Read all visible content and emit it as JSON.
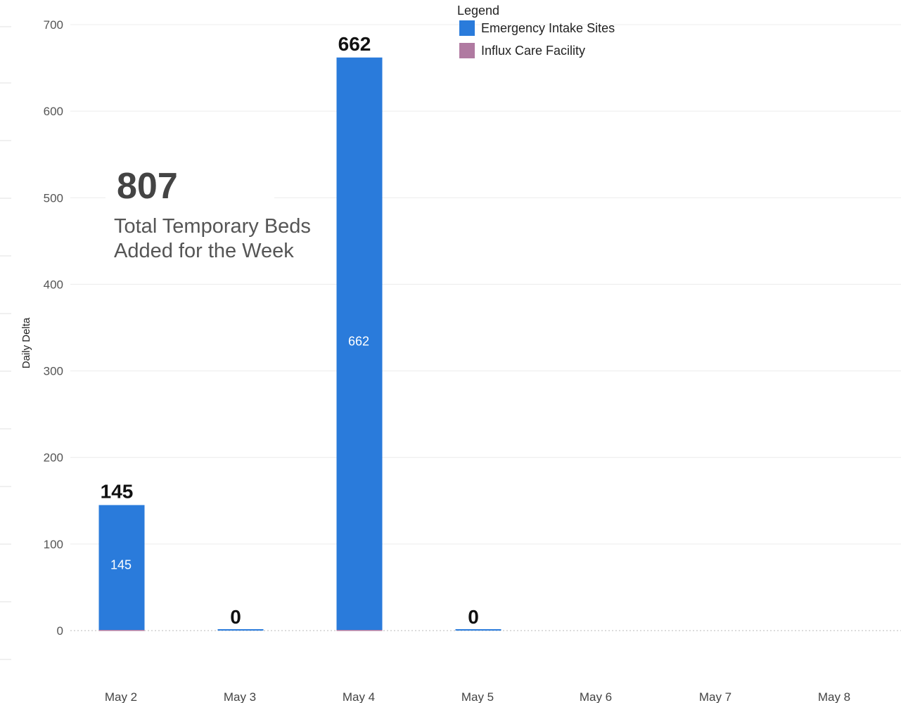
{
  "chart_data": {
    "type": "bar",
    "ylabel": "Daily Delta",
    "xlabel": "",
    "ylim": [
      0,
      700
    ],
    "yticks": [
      0,
      100,
      200,
      300,
      400,
      500,
      600,
      700
    ],
    "categories": [
      "May 2",
      "May 3",
      "May 4",
      "May 5",
      "May 6",
      "May 7",
      "May 8"
    ],
    "series": [
      {
        "name": "Emergency Intake Sites",
        "color": "#2a7bdb",
        "values": [
          145,
          0,
          662,
          0,
          null,
          null,
          null
        ]
      },
      {
        "name": "Influx Care Facility",
        "color": "#b07aa1",
        "values": [
          0,
          null,
          0,
          null,
          null,
          null,
          null
        ]
      }
    ],
    "total_labels": [
      "145",
      "0",
      "662",
      "0",
      "",
      "",
      ""
    ],
    "inner_labels": [
      "145",
      "",
      "662",
      "",
      "",
      "",
      ""
    ],
    "legend_title": "Legend",
    "legend_position": "top-center",
    "grid": true
  },
  "kpi": {
    "value": "807",
    "label_line1": "Total Temporary Beds",
    "label_line2": "Added for the Week"
  }
}
